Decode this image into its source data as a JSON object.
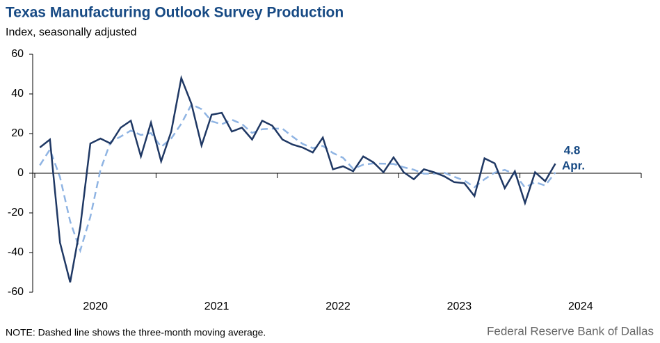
{
  "chart_data": {
    "type": "line",
    "title": "Texas Manufacturing Outlook Survey Production",
    "subtitle": "Index, seasonally adjusted",
    "note": "NOTE: Dashed line shows the three-month  moving average.",
    "source": "Federal Reserve Bank of Dallas",
    "annotation": "Apr.",
    "x": [
      2020.042,
      2020.125,
      2020.208,
      2020.292,
      2020.375,
      2020.458,
      2020.542,
      2020.625,
      2020.708,
      2020.792,
      2020.875,
      2020.958,
      2021.042,
      2021.125,
      2021.208,
      2021.292,
      2021.375,
      2021.458,
      2021.542,
      2021.625,
      2021.708,
      2021.792,
      2021.875,
      2021.958,
      2022.042,
      2022.125,
      2022.208,
      2022.292,
      2022.375,
      2022.458,
      2022.542,
      2022.625,
      2022.708,
      2022.792,
      2022.875,
      2022.958,
      2023.042,
      2023.125,
      2023.208,
      2023.292,
      2023.375,
      2023.458,
      2023.542,
      2023.625,
      2023.708,
      2023.792,
      2023.875,
      2023.958,
      2024.042,
      2024.125,
      2024.208,
      2024.292
    ],
    "series": [
      {
        "name": "Production",
        "color": "#1f3864",
        "dash": false,
        "values": [
          13,
          17,
          -35,
          -55,
          -27,
          15,
          17.5,
          15,
          23,
          26.5,
          8.5,
          25.5,
          6,
          21,
          48,
          35,
          14,
          29.5,
          30.5,
          21,
          23,
          17,
          26.5,
          24,
          17,
          14.5,
          13,
          10.5,
          18,
          2,
          3.5,
          1,
          8.5,
          5.5,
          0.5,
          8,
          0.5,
          -3,
          2,
          0.5,
          -1.5,
          -4.5,
          -5,
          -11.5,
          7.5,
          5,
          -7.5,
          1,
          -15,
          0.5,
          -4,
          4.8
        ]
      },
      {
        "name": "Three-month moving average",
        "color": "#8fb4e3",
        "dash": true,
        "values": [
          4,
          12,
          -2,
          -24.3,
          -39,
          -22,
          1.8,
          15.8,
          18.5,
          21.5,
          19.3,
          20.2,
          13.3,
          17.5,
          25,
          34.7,
          32.3,
          26.2,
          24.7,
          27,
          24.8,
          20.3,
          22.2,
          22.5,
          22.5,
          18.5,
          14.8,
          12.7,
          13.8,
          10.2,
          7.8,
          2.2,
          4.3,
          5,
          4.8,
          4.7,
          3,
          1.8,
          -0.2,
          -0.2,
          0.3,
          -1.8,
          -3.7,
          -7,
          -3,
          0.3,
          1.7,
          -0.5,
          -7.2,
          -4.5,
          -6.2,
          0.4
        ]
      }
    ],
    "xlim": [
      2020,
      2025
    ],
    "xticks": [
      2020,
      2021,
      2022,
      2023,
      2024,
      2025
    ],
    "xlabels": [
      2020,
      2021,
      2022,
      2023,
      2024
    ],
    "ylim": [
      -60,
      60
    ],
    "yticks": [
      -60,
      -40,
      -20,
      0,
      20,
      40,
      60
    ]
  }
}
